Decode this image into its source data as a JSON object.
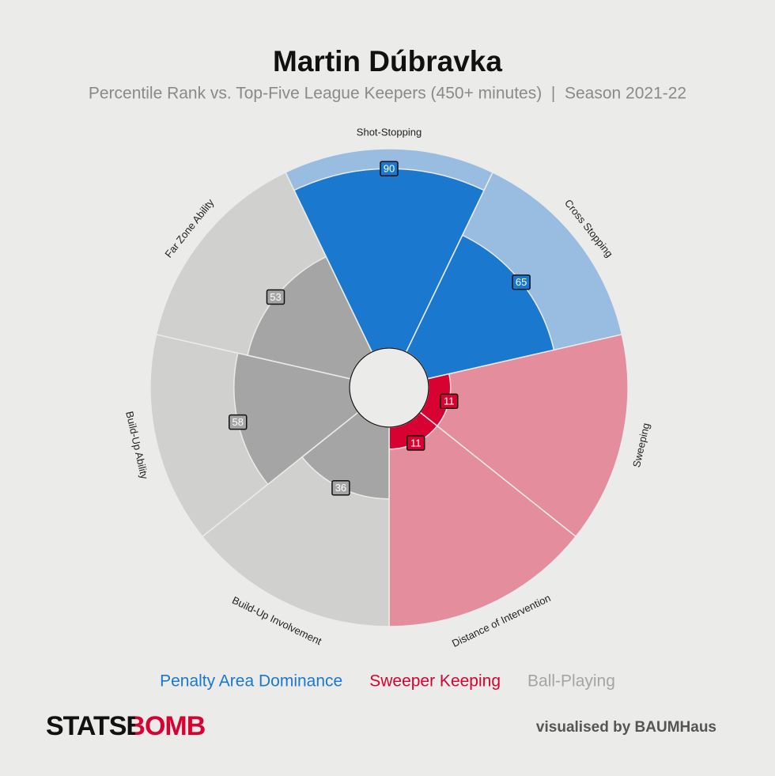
{
  "chart_data": {
    "type": "pizza",
    "title": "Martin Dúbravka",
    "subtitle": "Percentile Rank vs. Top-Five League Keepers (450+ minutes)  |  Season 2021-22",
    "categories": [
      "Shot-Stopping",
      "Cross Stopping",
      "Sweeping",
      "Distance of Intervention",
      "Build-Up Involvement",
      "Build-Up Ability",
      "Far Zone Ability"
    ],
    "series": [
      {
        "name": "Penalty Area Dominance",
        "color": "#1a78cf",
        "background_color": "#98bde1",
        "values": [
          90,
          65,
          null,
          null,
          null,
          null,
          null
        ]
      },
      {
        "name": "Sweeper Keeping",
        "color": "#d70232",
        "background_color": "#e48d9c",
        "values": [
          null,
          null,
          11,
          11,
          null,
          null,
          null
        ]
      },
      {
        "name": "Ball-Playing",
        "color": "#a5a5a5",
        "background_color": "#d0d0ce",
        "values": [
          null,
          null,
          null,
          null,
          36,
          58,
          53
        ]
      }
    ],
    "ylim": [
      0,
      100
    ],
    "logo": "STATSBOMB",
    "credit": "visualised by BAUMHaus"
  }
}
